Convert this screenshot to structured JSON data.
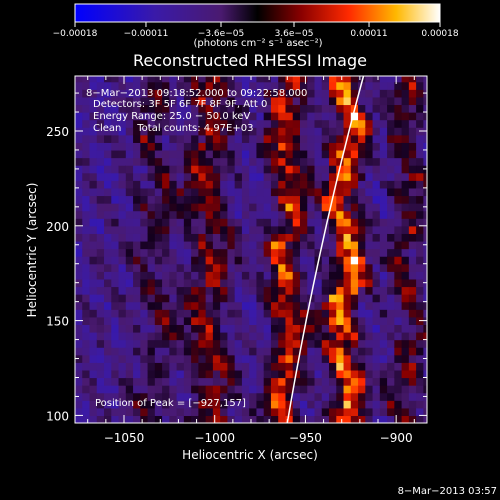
{
  "chart_data": {
    "type": "heatmap",
    "title": "Reconstructed RHESSI Image",
    "xlabel": "Heliocentric X (arcsec)",
    "ylabel": "Heliocentric Y (arcsec)",
    "xlim": [
      -1077,
      -883
    ],
    "ylim": [
      96,
      279
    ],
    "xticks": [
      -1050,
      -1000,
      -950,
      -900
    ],
    "yticks": [
      100,
      150,
      200,
      250
    ],
    "xtick_labels": [
      "−1050",
      "−1000",
      "−950",
      "−900"
    ],
    "ytick_labels": [
      "100",
      "150",
      "200",
      "250"
    ],
    "colorbar": {
      "ticks": [
        -0.00018,
        -0.00011,
        -3.6e-05,
        3.6e-05,
        0.00011,
        0.00018
      ],
      "tick_labels": [
        "−0.00018",
        "−0.00011",
        "−3.6e−05",
        "3.6e−05",
        "0.00011",
        "0.00018"
      ],
      "unit": "(photons cm⁻² s⁻¹ asec⁻²)",
      "range": [
        -0.00018,
        0.00018
      ]
    },
    "annotations": [
      "8−Mar−2013 09:18:52.000 to 09:22:58.000",
      "Detectors: 3F 5F 6F 7F 8F 9F, Att 0",
      "Energy Range: 25.0 − 50.0 keV",
      "Clean     Total counts: 4.97E+03"
    ],
    "peak_label": "Position of Peak = [−927,157]",
    "peak": [
      -927,
      157
    ],
    "limb": [
      [
        -960,
        96
      ],
      [
        -940,
        190
      ],
      [
        -918,
        279
      ]
    ],
    "emission_bands": [
      {
        "x_center": -1035,
        "width": 10,
        "intensity": 0.35
      },
      {
        "x_center": -1005,
        "width": 12,
        "intensity": 0.55
      },
      {
        "x_center": -962,
        "width": 9,
        "intensity": 0.8
      },
      {
        "x_center": -930,
        "width": 9,
        "intensity": 1.0
      },
      {
        "x_center": -895,
        "width": 9,
        "intensity": 0.45
      }
    ],
    "footer_date": "8−Mar−2013 03:57"
  }
}
